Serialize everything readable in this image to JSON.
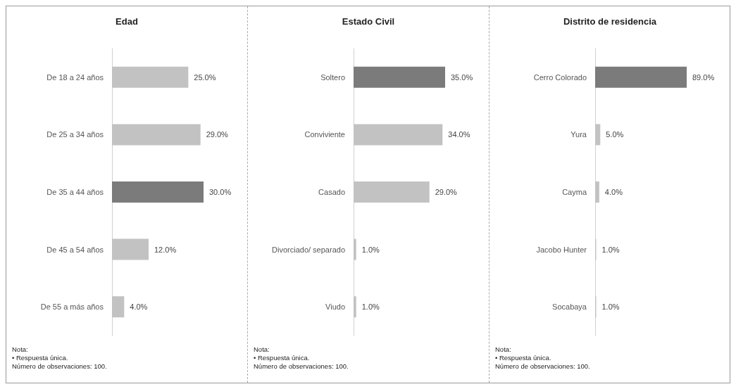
{
  "chart_data": [
    {
      "type": "bar",
      "orientation": "horizontal",
      "title": "Edad",
      "categories": [
        "De 18 a 24 años",
        "De 25 a 34 años",
        "De 35 a 44 años",
        "De 45 a 54 años",
        "De 55 a más años"
      ],
      "values": [
        25.0,
        29.0,
        30.0,
        12.0,
        4.0
      ],
      "value_labels": [
        "25.0%",
        "29.0%",
        "30.0%",
        "12.0%",
        "4.0%"
      ],
      "colors": [
        "#c2c2c2",
        "#c2c2c2",
        "#7b7b7b",
        "#c2c2c2",
        "#c2c2c2"
      ],
      "tick_labels": "y",
      "annotations": [
        "Nota:",
        "•   Respuesta única.",
        "Número de observaciones: 100."
      ]
    },
    {
      "type": "bar",
      "orientation": "horizontal",
      "title": "Estado Civil",
      "categories": [
        "Soltero",
        "Conviviente",
        "Casado",
        "Divorciado/ separado",
        "Viudo"
      ],
      "values": [
        35.0,
        34.0,
        29.0,
        1.0,
        1.0
      ],
      "value_labels": [
        "35.0%",
        "34.0%",
        "29.0%",
        "1.0%",
        "1.0%"
      ],
      "colors": [
        "#7b7b7b",
        "#c2c2c2",
        "#c2c2c2",
        "#c2c2c2",
        "#c2c2c2"
      ],
      "tick_labels": "y",
      "annotations": [
        "Nota:",
        "•   Respuesta única.",
        "Número de observaciones: 100."
      ]
    },
    {
      "type": "bar",
      "orientation": "horizontal",
      "title": "Distrito de residencia",
      "categories": [
        "Cerro Colorado",
        "Yura",
        "Cayma",
        "Jacobo Hunter",
        "Socabaya"
      ],
      "values": [
        89.0,
        5.0,
        4.0,
        1.0,
        1.0
      ],
      "value_labels": [
        "89.0%",
        "5.0%",
        "4.0%",
        "1.0%",
        "1.0%"
      ],
      "colors": [
        "#7b7b7b",
        "#c2c2c2",
        "#c2c2c2",
        "#c2c2c2",
        "#c2c2c2"
      ],
      "tick_labels": "y",
      "annotations": [
        "Nota:",
        "•   Respuesta única.",
        "Número de observaciones: 100."
      ]
    }
  ]
}
